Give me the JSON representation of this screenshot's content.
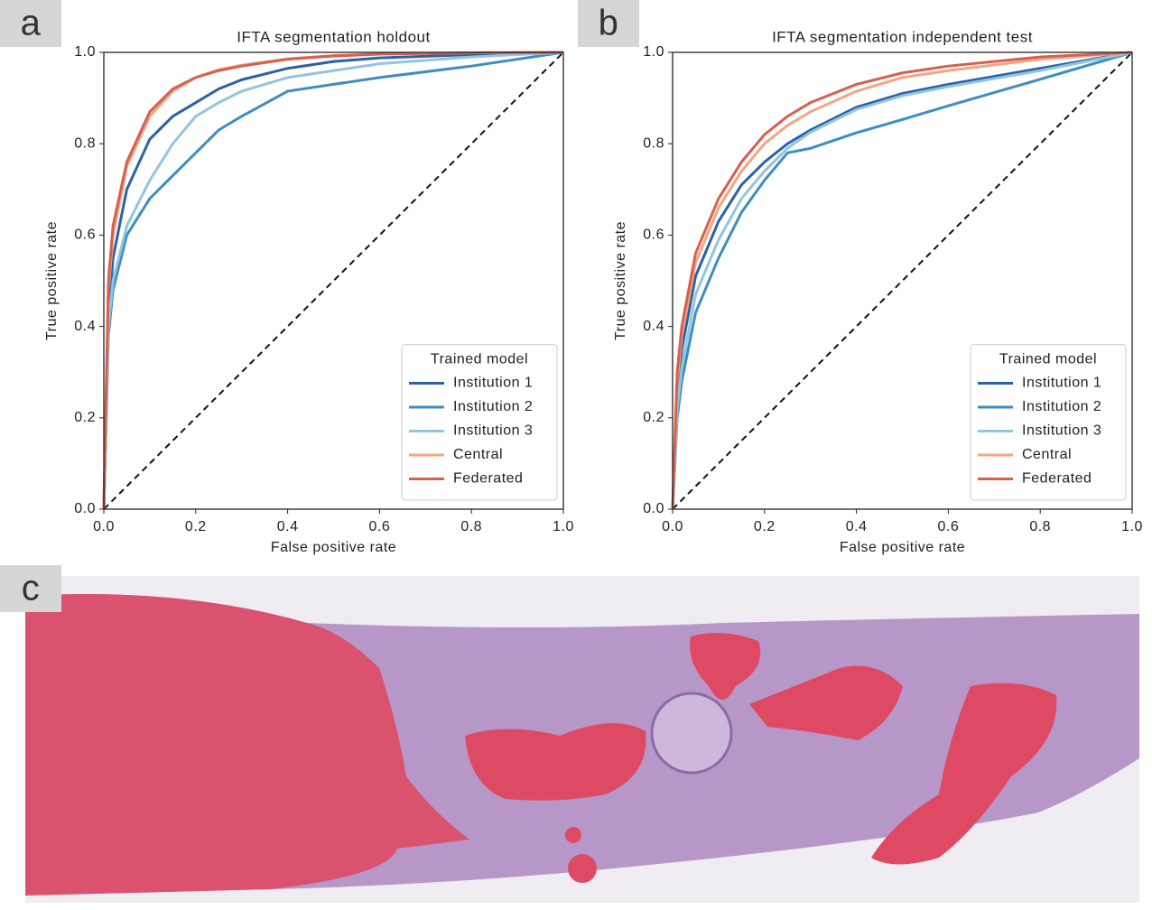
{
  "panel_labels": [
    "a",
    "b",
    "c"
  ],
  "chart_data": [
    {
      "type": "line",
      "title": "IFTA segmentation  holdout",
      "xlabel": "False positive rate",
      "ylabel": "True positive rate",
      "xlim": [
        0,
        1
      ],
      "ylim": [
        0,
        1
      ],
      "xticks": [
        {
          "value": 0,
          "label": "0.0"
        },
        0.2,
        0.4,
        0.6,
        0.8,
        {
          "value": 1,
          "label": "1.0"
        }
      ],
      "yticks": [
        {
          "value": 0,
          "label": "0.0"
        },
        0.2,
        0.4,
        0.6,
        0.8,
        {
          "value": 1,
          "label": "1.0"
        }
      ],
      "legend_title": "Trained model",
      "legend_position": "lower right",
      "x": [
        0,
        0.01,
        0.02,
        0.05,
        0.1,
        0.15,
        0.2,
        0.25,
        0.3,
        0.4,
        0.5,
        0.6,
        0.8,
        1
      ],
      "series": [
        {
          "name": "Institution 1",
          "color": "#2a62a8",
          "values": [
            0,
            0.42,
            0.55,
            0.7,
            0.81,
            0.86,
            0.89,
            0.92,
            0.94,
            0.965,
            0.98,
            0.988,
            0.995,
            1
          ]
        },
        {
          "name": "Institution 2",
          "color": "#3d8dc4",
          "values": [
            0,
            0.38,
            0.48,
            0.6,
            0.68,
            0.73,
            0.78,
            0.83,
            0.86,
            0.915,
            0.93,
            0.945,
            0.97,
            1
          ]
        },
        {
          "name": "Institution 3",
          "color": "#92c5de",
          "values": [
            0,
            0.4,
            0.5,
            0.62,
            0.72,
            0.8,
            0.86,
            0.89,
            0.915,
            0.945,
            0.96,
            0.975,
            0.99,
            1
          ]
        },
        {
          "name": "Central",
          "color": "#f4a582",
          "values": [
            0,
            0.48,
            0.6,
            0.75,
            0.86,
            0.915,
            0.945,
            0.962,
            0.972,
            0.986,
            0.993,
            0.997,
            0.999,
            1
          ]
        },
        {
          "name": "Federated",
          "color": "#d6604d",
          "values": [
            0,
            0.5,
            0.62,
            0.76,
            0.87,
            0.92,
            0.945,
            0.96,
            0.97,
            0.985,
            0.992,
            0.996,
            0.999,
            1
          ]
        }
      ]
    },
    {
      "type": "line",
      "title": "IFTA segmentation  independent test",
      "xlabel": "False positive rate",
      "ylabel": "True positive rate",
      "xlim": [
        0,
        1
      ],
      "ylim": [
        0,
        1
      ],
      "xticks": [
        {
          "value": 0,
          "label": "0.0"
        },
        0.2,
        0.4,
        0.6,
        0.8,
        {
          "value": 1,
          "label": "1.0"
        }
      ],
      "yticks": [
        {
          "value": 0,
          "label": "0.0"
        },
        0.2,
        0.4,
        0.6,
        0.8,
        {
          "value": 1,
          "label": "1.0"
        }
      ],
      "legend_title": "Trained model",
      "legend_position": "lower right",
      "x": [
        0,
        0.01,
        0.02,
        0.05,
        0.1,
        0.15,
        0.2,
        0.25,
        0.3,
        0.4,
        0.5,
        0.6,
        0.8,
        1
      ],
      "series": [
        {
          "name": "Institution 1",
          "color": "#2a62a8",
          "values": [
            0,
            0.25,
            0.35,
            0.51,
            0.63,
            0.71,
            0.76,
            0.8,
            0.83,
            0.88,
            0.91,
            0.93,
            0.965,
            1
          ]
        },
        {
          "name": "Institution 2",
          "color": "#3d8dc4",
          "values": [
            0,
            0.2,
            0.28,
            0.43,
            0.55,
            0.65,
            0.72,
            0.78,
            0.79,
            0.824,
            0.853,
            0.883,
            0.941,
            1
          ]
        },
        {
          "name": "Institution 3",
          "color": "#92c5de",
          "values": [
            0,
            0.22,
            0.31,
            0.47,
            0.59,
            0.68,
            0.74,
            0.79,
            0.825,
            0.875,
            0.905,
            0.925,
            0.96,
            1
          ]
        },
        {
          "name": "Central",
          "color": "#f4a582",
          "values": [
            0,
            0.28,
            0.38,
            0.54,
            0.66,
            0.74,
            0.8,
            0.84,
            0.87,
            0.915,
            0.945,
            0.96,
            0.985,
            1
          ]
        },
        {
          "name": "Federated",
          "color": "#d6604d",
          "values": [
            0,
            0.3,
            0.4,
            0.56,
            0.68,
            0.76,
            0.82,
            0.86,
            0.89,
            0.93,
            0.955,
            0.97,
            0.99,
            1
          ]
        }
      ]
    }
  ]
}
